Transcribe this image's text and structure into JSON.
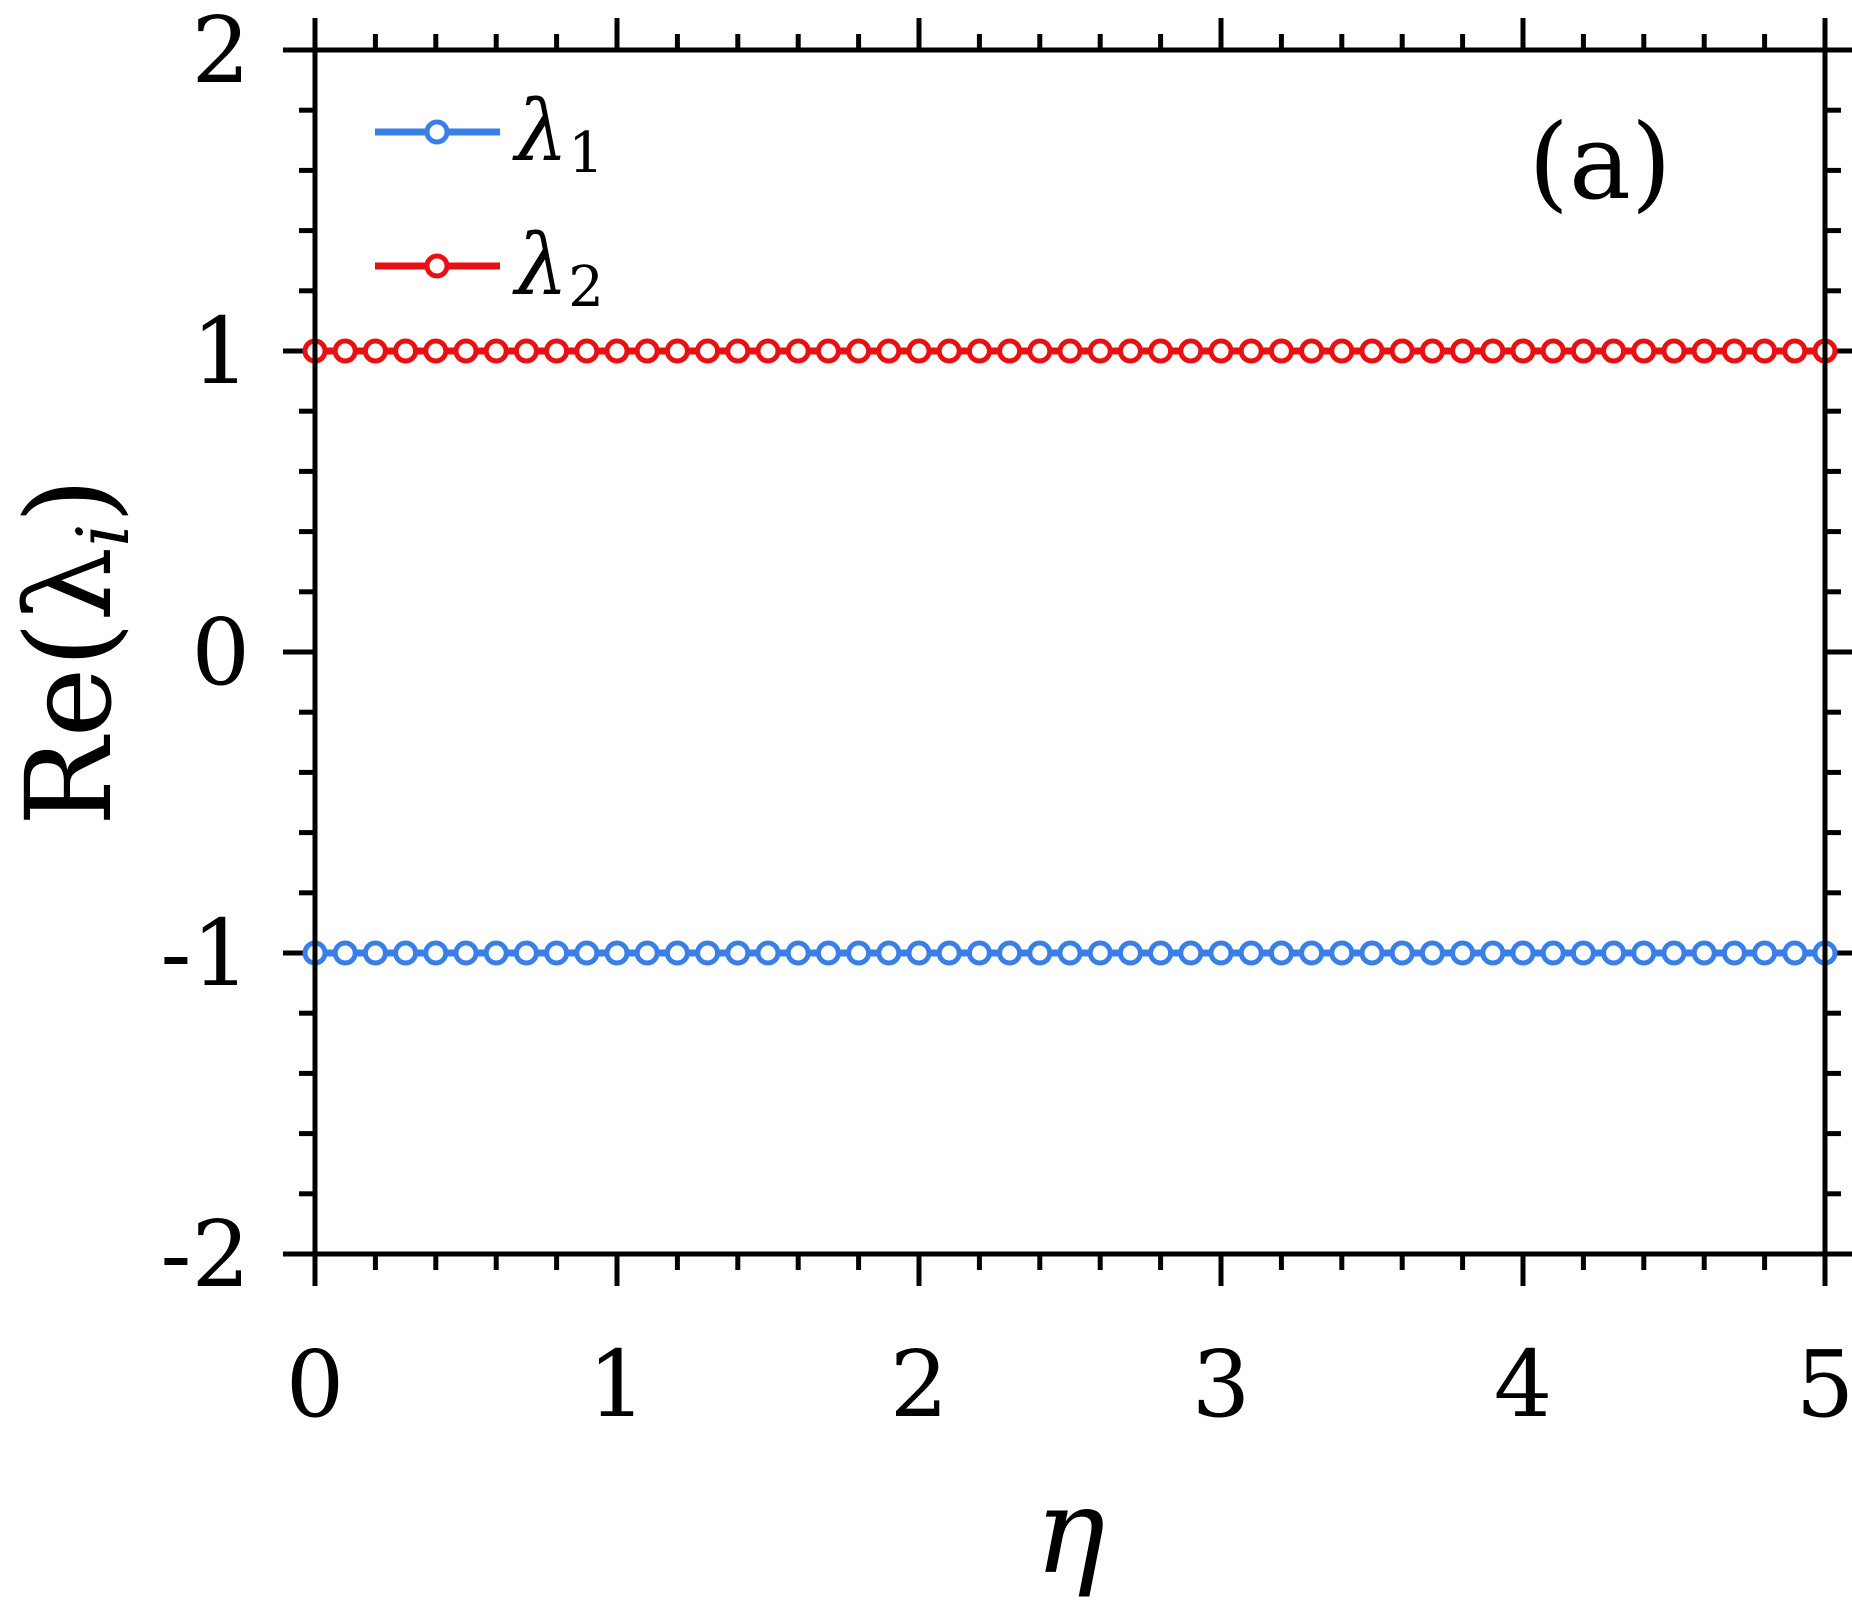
{
  "chart_data": {
    "type": "line",
    "panel_label": "(a)",
    "xlabel": "η",
    "ylabel": "Re(λ",
    "ylabel_sub": "i",
    "ylabel_close": ")",
    "xlim": [
      0,
      5
    ],
    "ylim": [
      -2,
      2
    ],
    "x_ticks": [
      0,
      1,
      2,
      3,
      4,
      5
    ],
    "x_tick_labels": [
      "0",
      "1",
      "2",
      "3",
      "4",
      "5"
    ],
    "y_ticks": [
      -2,
      -1,
      0,
      1,
      2
    ],
    "y_tick_labels": [
      "-2",
      "-1",
      "0",
      "1",
      "2"
    ],
    "x_minor_step": 0.2,
    "y_minor_step": 0.2,
    "grid": false,
    "legend_position": "top-left",
    "marker": "open-circle",
    "x": [
      0.0,
      0.1,
      0.2,
      0.3,
      0.4,
      0.5,
      0.6,
      0.7,
      0.8,
      0.9,
      1.0,
      1.1,
      1.2,
      1.3,
      1.4,
      1.5,
      1.6,
      1.7,
      1.8,
      1.9,
      2.0,
      2.1,
      2.2,
      2.3,
      2.4,
      2.5,
      2.6,
      2.7,
      2.8,
      2.9,
      3.0,
      3.1,
      3.2,
      3.3,
      3.4,
      3.5,
      3.6,
      3.7,
      3.8,
      3.9,
      4.0,
      4.1,
      4.2,
      4.3,
      4.4,
      4.5,
      4.6,
      4.7,
      4.8,
      4.9,
      5.0
    ],
    "series": [
      {
        "name": "λ",
        "name_sub": "1",
        "color": "#3a7fe8",
        "values": [
          -1,
          -1,
          -1,
          -1,
          -1,
          -1,
          -1,
          -1,
          -1,
          -1,
          -1,
          -1,
          -1,
          -1,
          -1,
          -1,
          -1,
          -1,
          -1,
          -1,
          -1,
          -1,
          -1,
          -1,
          -1,
          -1,
          -1,
          -1,
          -1,
          -1,
          -1,
          -1,
          -1,
          -1,
          -1,
          -1,
          -1,
          -1,
          -1,
          -1,
          -1,
          -1,
          -1,
          -1,
          -1,
          -1,
          -1,
          -1,
          -1,
          -1,
          -1
        ]
      },
      {
        "name": "λ",
        "name_sub": "2",
        "color": "#e81010",
        "values": [
          1,
          1,
          1,
          1,
          1,
          1,
          1,
          1,
          1,
          1,
          1,
          1,
          1,
          1,
          1,
          1,
          1,
          1,
          1,
          1,
          1,
          1,
          1,
          1,
          1,
          1,
          1,
          1,
          1,
          1,
          1,
          1,
          1,
          1,
          1,
          1,
          1,
          1,
          1,
          1,
          1,
          1,
          1,
          1,
          1,
          1,
          1,
          1,
          1,
          1,
          1
        ]
      }
    ]
  }
}
